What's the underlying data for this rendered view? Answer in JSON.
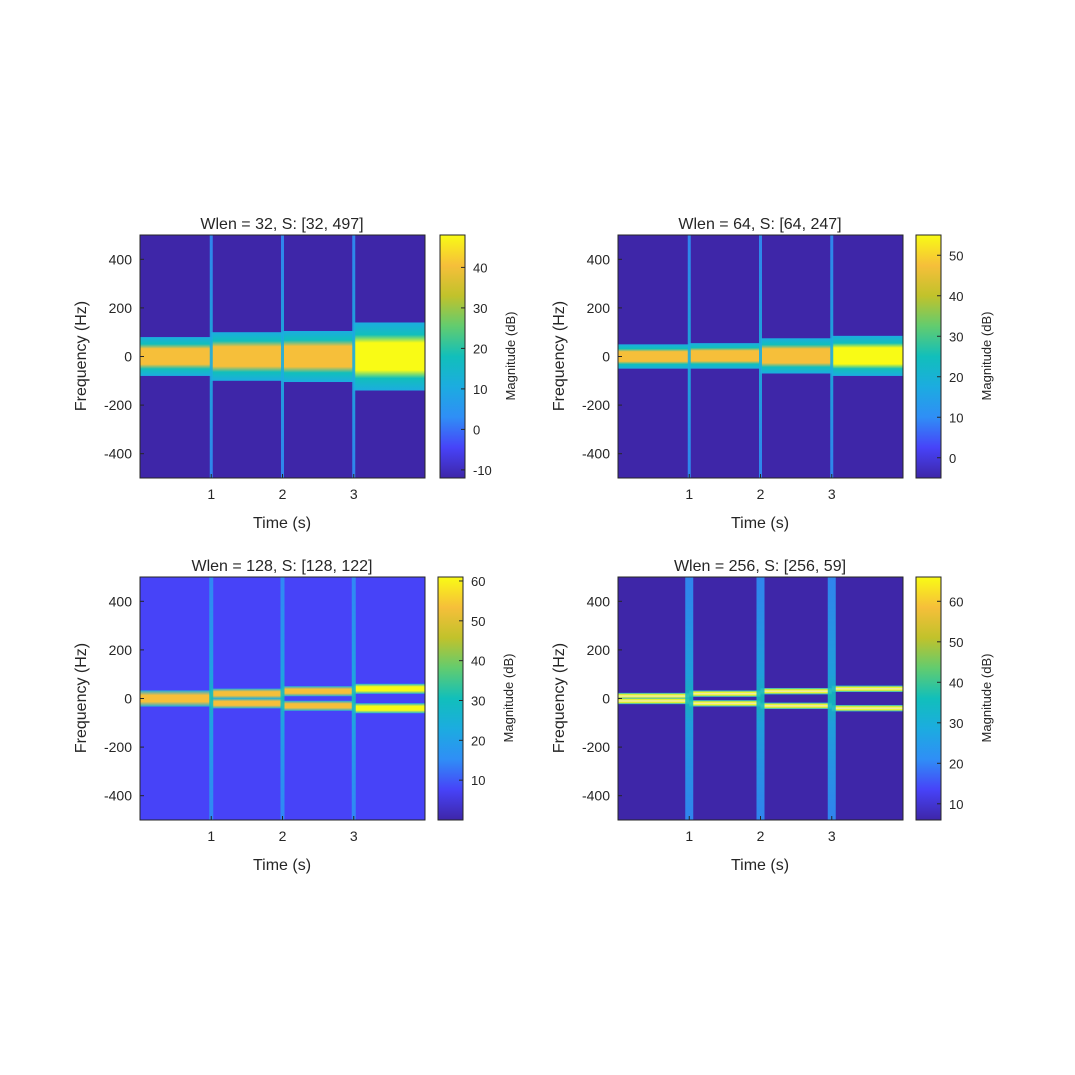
{
  "chart_data": [
    {
      "type": "heatmap",
      "title": "Wlen = 32, S: [32, 497]",
      "xlabel": "Time (s)",
      "ylabel": "Frequency (Hz)",
      "xlim": [
        0,
        4
      ],
      "ylim": [
        -500,
        500
      ],
      "xticks": [
        1,
        2,
        3
      ],
      "yticks": [
        400,
        200,
        0,
        -200,
        -400
      ],
      "colorbar": {
        "label": "Magnitude (dB)",
        "range": [
          -12,
          48
        ],
        "ticks": [
          40,
          30,
          20,
          10,
          0,
          -10
        ]
      },
      "background_db": -10,
      "transitions_s": [
        1,
        2,
        3
      ],
      "segments": [
        {
          "t_start": 0,
          "t_end": 1,
          "band_hz": [
            -80,
            80
          ],
          "core_hz": [
            -55,
            55
          ],
          "peak_db": 38
        },
        {
          "t_start": 1,
          "t_end": 2,
          "band_hz": [
            -100,
            100
          ],
          "core_hz": [
            -80,
            80
          ],
          "peak_db": 42
        },
        {
          "t_start": 2,
          "t_end": 3,
          "band_hz": [
            -105,
            105
          ],
          "core_hz": [
            -85,
            85
          ],
          "peak_db": 42
        },
        {
          "t_start": 3,
          "t_end": 4,
          "band_hz": [
            -140,
            140
          ],
          "core_hz": [
            -100,
            110
          ],
          "peak_db": 46
        }
      ]
    },
    {
      "type": "heatmap",
      "title": "Wlen = 64, S: [64, 247]",
      "xlabel": "Time (s)",
      "ylabel": "Frequency (Hz)",
      "xlim": [
        0,
        4
      ],
      "ylim": [
        -500,
        500
      ],
      "xticks": [
        1,
        2,
        3
      ],
      "yticks": [
        400,
        200,
        0,
        -200,
        -400
      ],
      "colorbar": {
        "label": "Magnitude (dB)",
        "range": [
          -5,
          55
        ],
        "ticks": [
          50,
          40,
          30,
          20,
          10,
          0
        ]
      },
      "background_db": -3,
      "transitions_s": [
        1,
        2,
        3
      ],
      "segments": [
        {
          "t_start": 0,
          "t_end": 1,
          "band_hz": [
            -50,
            50
          ],
          "core_hz": [
            -30,
            30
          ],
          "peak_db": 45
        },
        {
          "t_start": 1,
          "t_end": 2,
          "band_hz": [
            -50,
            55
          ],
          "core_hz": [
            -30,
            35
          ],
          "peak_db": 50
        },
        {
          "t_start": 2,
          "t_end": 3,
          "band_hz": [
            -70,
            75
          ],
          "core_hz": [
            -45,
            55
          ],
          "peak_db": 50
        },
        {
          "t_start": 3,
          "t_end": 4,
          "band_hz": [
            -80,
            85
          ],
          "core_hz": [
            -60,
            70
          ],
          "peak_db": 52
        }
      ]
    },
    {
      "type": "heatmap",
      "title": "Wlen = 128, S: [128, 122]",
      "xlabel": "Time (s)",
      "ylabel": "Frequency (Hz)",
      "xlim": [
        0,
        4
      ],
      "ylim": [
        -500,
        500
      ],
      "xticks": [
        1,
        2,
        3
      ],
      "yticks": [
        400,
        200,
        0,
        -200,
        -400
      ],
      "colorbar": {
        "label": "Magnitude (dB)",
        "range": [
          0,
          61
        ],
        "ticks": [
          60,
          50,
          40,
          30,
          20,
          10
        ]
      },
      "background_db": 4,
      "transitions_s": [
        1,
        2,
        3
      ],
      "tones": [
        {
          "t_start": 0,
          "t_end": 1,
          "freq_hz": 0,
          "width_hz": 50,
          "peak_db": 55
        },
        {
          "t_start": 1,
          "t_end": 2,
          "freq_hz": 20,
          "width_hz": 25,
          "peak_db": 55
        },
        {
          "t_start": 1,
          "t_end": 2,
          "freq_hz": -20,
          "width_hz": 25,
          "peak_db": 55
        },
        {
          "t_start": 2,
          "t_end": 3,
          "freq_hz": 30,
          "width_hz": 25,
          "peak_db": 56
        },
        {
          "t_start": 2,
          "t_end": 3,
          "freq_hz": -30,
          "width_hz": 25,
          "peak_db": 56
        },
        {
          "t_start": 3,
          "t_end": 4,
          "freq_hz": 40,
          "width_hz": 25,
          "peak_db": 58
        },
        {
          "t_start": 3,
          "t_end": 4,
          "freq_hz": -40,
          "width_hz": 25,
          "peak_db": 58
        }
      ]
    },
    {
      "type": "heatmap",
      "title": "Wlen = 256, S: [256, 59]",
      "xlabel": "Time (s)",
      "ylabel": "Frequency (Hz)",
      "xlim": [
        0,
        4
      ],
      "ylim": [
        -500,
        500
      ],
      "xticks": [
        1,
        2,
        3
      ],
      "yticks": [
        400,
        200,
        0,
        -200,
        -400
      ],
      "colorbar": {
        "label": "Magnitude (dB)",
        "range": [
          6,
          66
        ],
        "ticks": [
          60,
          50,
          40,
          30,
          20,
          10
        ]
      },
      "background_db": 9,
      "transitions_s": [
        1,
        2,
        3
      ],
      "tones": [
        {
          "t_start": 0,
          "t_end": 1,
          "freq_hz": 10,
          "width_hz": 10,
          "peak_db": 64
        },
        {
          "t_start": 0,
          "t_end": 1,
          "freq_hz": -10,
          "width_hz": 10,
          "peak_db": 64
        },
        {
          "t_start": 1,
          "t_end": 2,
          "freq_hz": 20,
          "width_hz": 10,
          "peak_db": 64
        },
        {
          "t_start": 1,
          "t_end": 2,
          "freq_hz": -20,
          "width_hz": 10,
          "peak_db": 64
        },
        {
          "t_start": 2,
          "t_end": 3,
          "freq_hz": 30,
          "width_hz": 10,
          "peak_db": 64
        },
        {
          "t_start": 2,
          "t_end": 3,
          "freq_hz": -30,
          "width_hz": 10,
          "peak_db": 64
        },
        {
          "t_start": 3,
          "t_end": 4,
          "freq_hz": 40,
          "width_hz": 10,
          "peak_db": 64
        },
        {
          "t_start": 3,
          "t_end": 4,
          "freq_hz": -40,
          "width_hz": 10,
          "peak_db": 64
        }
      ]
    }
  ],
  "colormap": [
    "#3e26a8",
    "#4743f8",
    "#2f8ef6",
    "#1cace0",
    "#11bfbb",
    "#62cc6f",
    "#c1c22b",
    "#f6bf3a",
    "#f9fb15"
  ],
  "colors": {
    "axis": "#262626",
    "background": "#ffffff",
    "tone_core": "#e9e6c8"
  }
}
